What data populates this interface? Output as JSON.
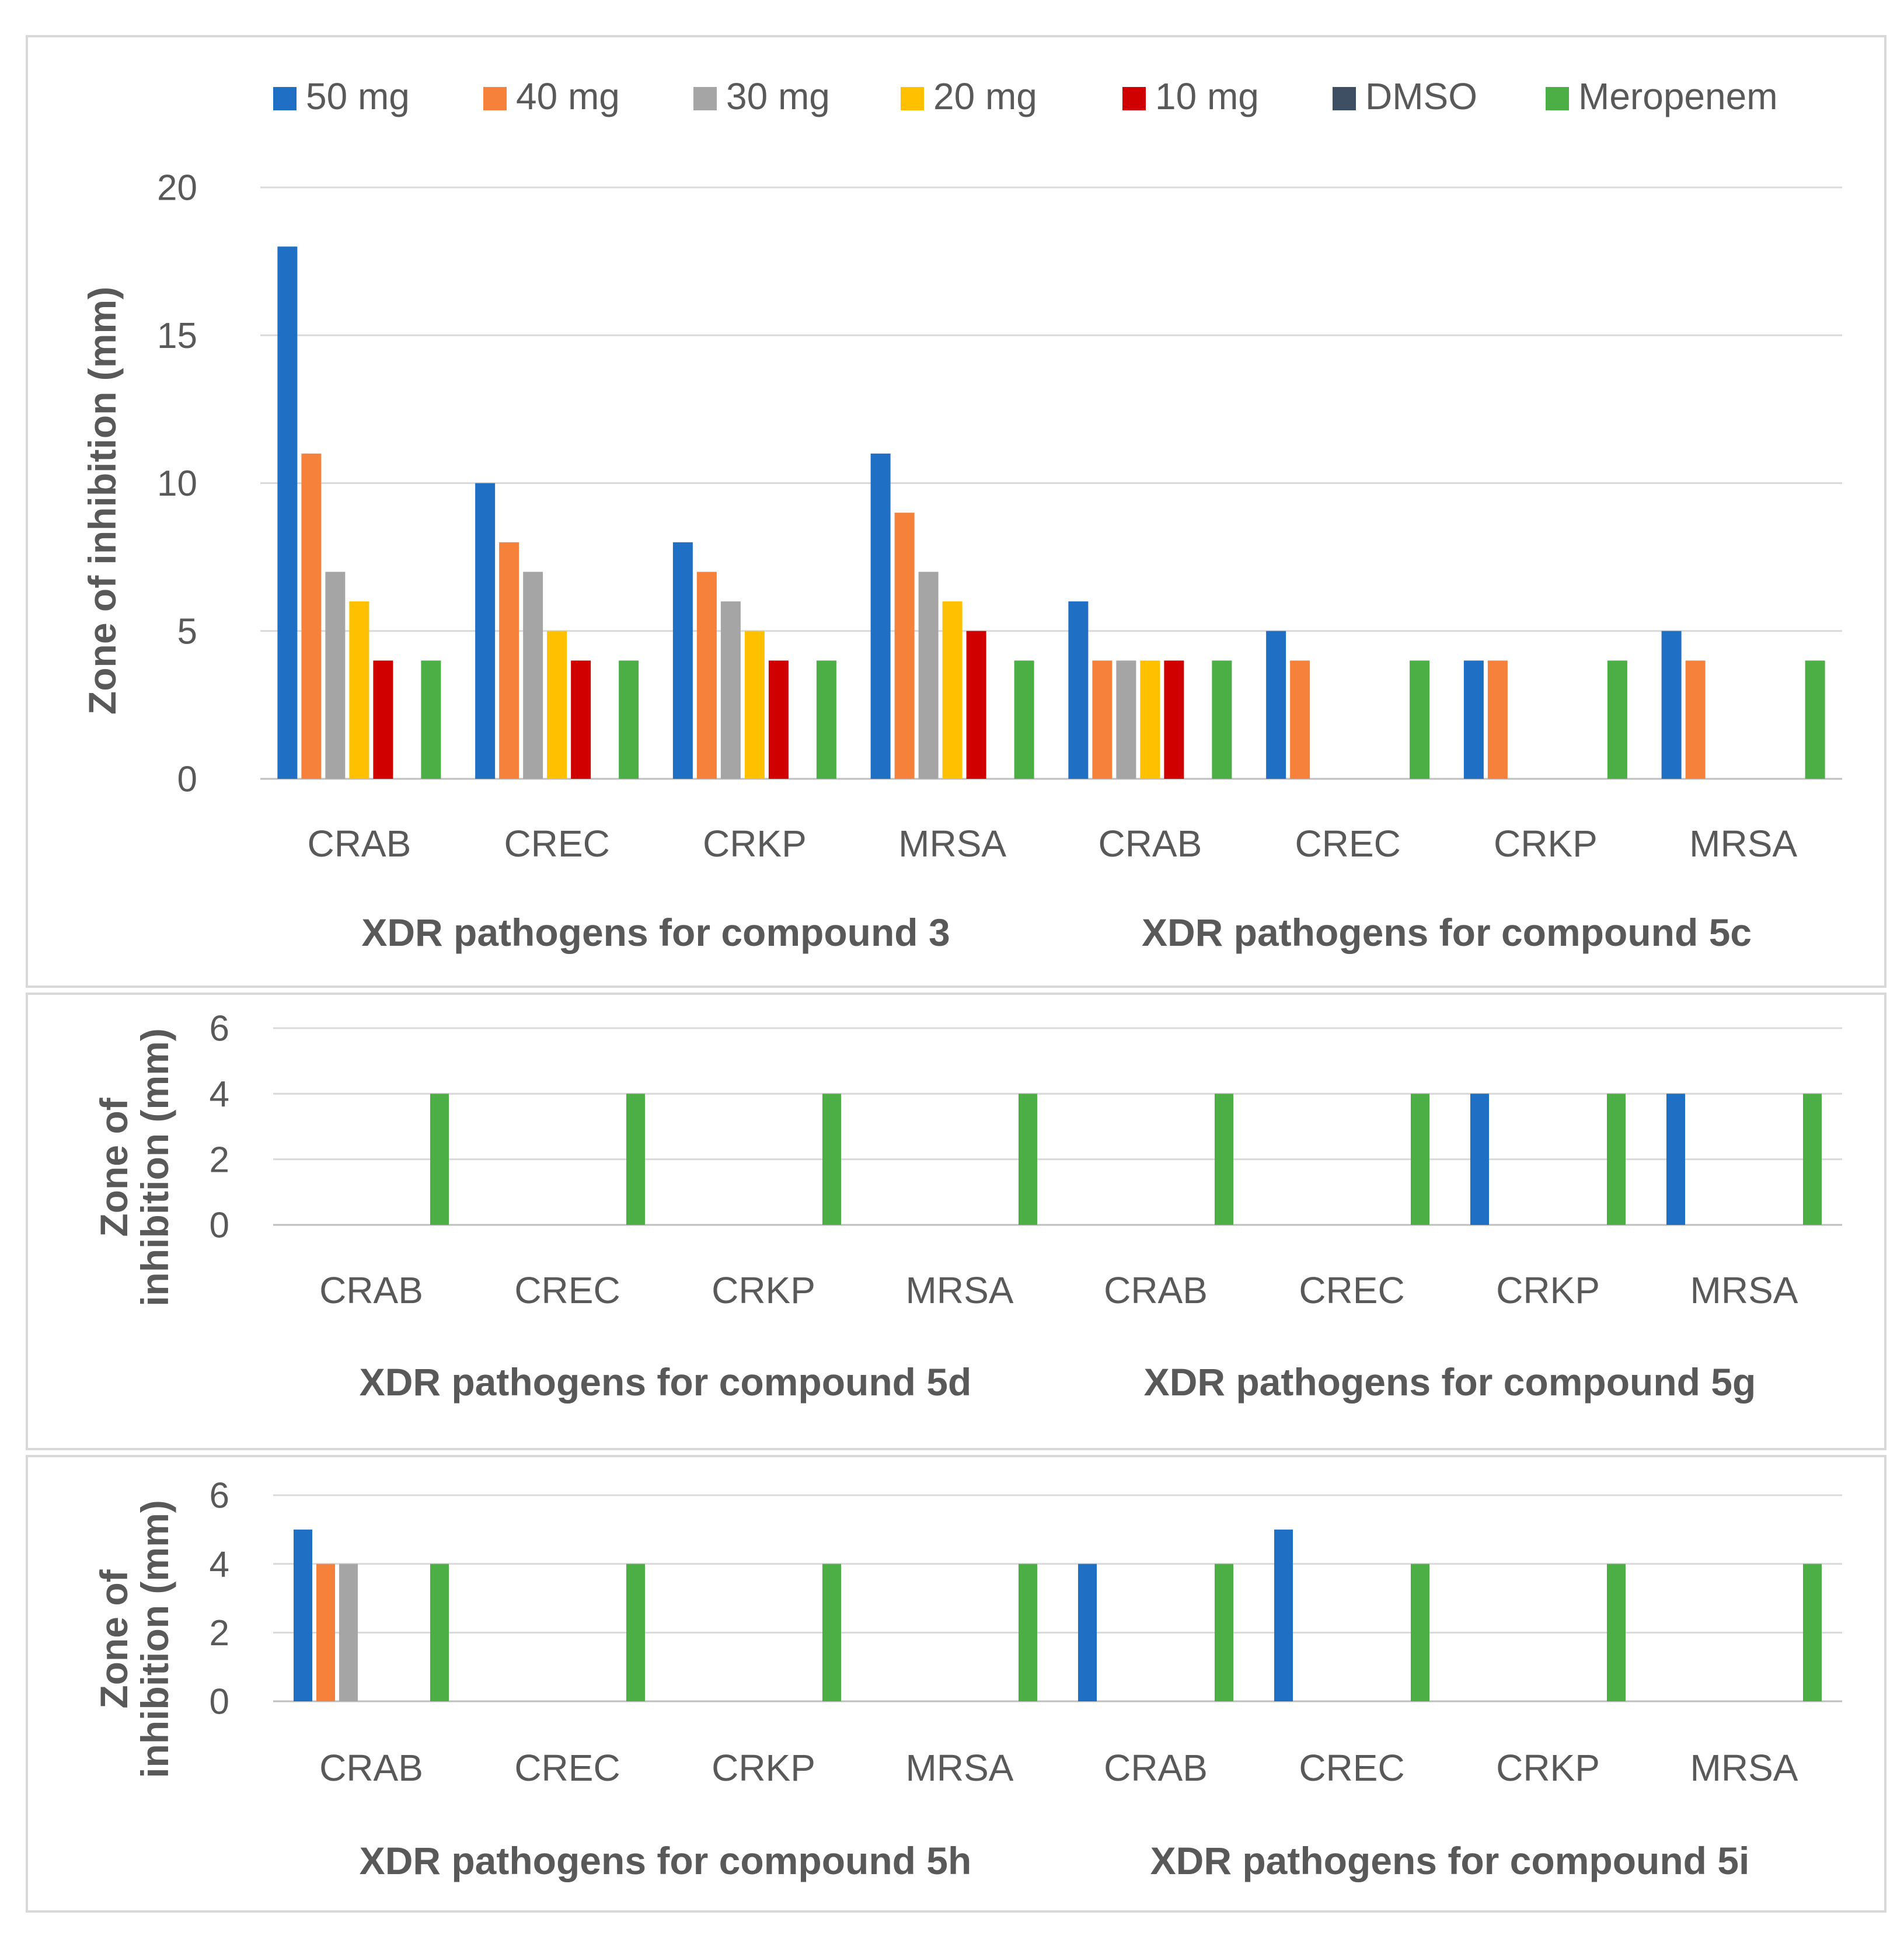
{
  "colors": {
    "50 mg": "#1f6fc5",
    "40 mg": "#f5813a",
    "30 mg": "#a5a5a5",
    "20  mg": "#ffc000",
    "10 mg": "#d00000",
    "DMSO": "#3e4f64",
    "Meropenem": "#4caf45",
    "grid": "#d9d9d9",
    "text": "#595959"
  },
  "legend": [
    "50 mg",
    "40 mg",
    "30 mg",
    "20  mg",
    "10 mg",
    "DMSO",
    "Meropenem"
  ],
  "chart_data": [
    {
      "type": "bar",
      "ylabel": "Zone of inhibition (mm)",
      "ylim": [
        0,
        20
      ],
      "yticks": [
        0,
        5,
        10,
        15,
        20
      ],
      "grid": true,
      "legend_position": "top",
      "groups": [
        {
          "label": "XDR pathogens for compound 3",
          "categories": [
            "CRAB",
            "CREC",
            "CRKP",
            "MRSA"
          ]
        },
        {
          "label": "XDR pathogens for compound 5c",
          "categories": [
            "CRAB",
            "CREC",
            "CRKP",
            "MRSA"
          ]
        }
      ],
      "series": [
        {
          "name": "50 mg",
          "values": [
            18,
            10,
            8,
            11,
            6,
            5,
            4,
            5
          ]
        },
        {
          "name": "40 mg",
          "values": [
            11,
            8,
            7,
            9,
            4,
            4,
            4,
            4
          ]
        },
        {
          "name": "30 mg",
          "values": [
            7,
            7,
            6,
            7,
            4,
            0,
            0,
            0
          ]
        },
        {
          "name": "20  mg",
          "values": [
            6,
            5,
            5,
            6,
            4,
            0,
            0,
            0
          ]
        },
        {
          "name": "10 mg",
          "values": [
            4,
            4,
            4,
            5,
            4,
            0,
            0,
            0
          ]
        },
        {
          "name": "DMSO",
          "values": [
            0,
            0,
            0,
            0,
            0,
            0,
            0,
            0
          ]
        },
        {
          "name": "Meropenem",
          "values": [
            4,
            4,
            4,
            4,
            4,
            4,
            4,
            4
          ]
        }
      ]
    },
    {
      "type": "bar",
      "ylabel_lines": [
        "Zone of",
        "inhibition (mm)"
      ],
      "ylim": [
        0,
        6
      ],
      "yticks": [
        0,
        2,
        4,
        6
      ],
      "grid": true,
      "groups": [
        {
          "label": "XDR pathogens for compound 5d",
          "categories": [
            "CRAB",
            "CREC",
            "CRKP",
            "MRSA"
          ]
        },
        {
          "label": "XDR pathogens for compound 5g",
          "categories": [
            "CRAB",
            "CREC",
            "CRKP",
            "MRSA"
          ]
        }
      ],
      "series": [
        {
          "name": "50 mg",
          "values": [
            0,
            0,
            0,
            0,
            0,
            0,
            4,
            4
          ]
        },
        {
          "name": "40 mg",
          "values": [
            0,
            0,
            0,
            0,
            0,
            0,
            0,
            0
          ]
        },
        {
          "name": "30 mg",
          "values": [
            0,
            0,
            0,
            0,
            0,
            0,
            0,
            0
          ]
        },
        {
          "name": "20  mg",
          "values": [
            0,
            0,
            0,
            0,
            0,
            0,
            0,
            0
          ]
        },
        {
          "name": "10 mg",
          "values": [
            0,
            0,
            0,
            0,
            0,
            0,
            0,
            0
          ]
        },
        {
          "name": "DMSO",
          "values": [
            0,
            0,
            0,
            0,
            0,
            0,
            0,
            0
          ]
        },
        {
          "name": "Meropenem",
          "values": [
            4,
            4,
            4,
            4,
            4,
            4,
            4,
            4
          ]
        }
      ]
    },
    {
      "type": "bar",
      "ylabel_lines": [
        "Zone of",
        "inhibition (mm)"
      ],
      "ylim": [
        0,
        6
      ],
      "yticks": [
        0,
        2,
        4,
        6
      ],
      "grid": true,
      "groups": [
        {
          "label": "XDR pathogens for compound 5h",
          "categories": [
            "CRAB",
            "CREC",
            "CRKP",
            "MRSA"
          ]
        },
        {
          "label": "XDR pathogens for compound 5i",
          "categories": [
            "CRAB",
            "CREC",
            "CRKP",
            "MRSA"
          ]
        }
      ],
      "series": [
        {
          "name": "50 mg",
          "values": [
            5,
            0,
            0,
            0,
            4,
            5,
            0,
            0
          ]
        },
        {
          "name": "40 mg",
          "values": [
            4,
            0,
            0,
            0,
            0,
            0,
            0,
            0
          ]
        },
        {
          "name": "30 mg",
          "values": [
            4,
            0,
            0,
            0,
            0,
            0,
            0,
            0
          ]
        },
        {
          "name": "20  mg",
          "values": [
            0,
            0,
            0,
            0,
            0,
            0,
            0,
            0
          ]
        },
        {
          "name": "10 mg",
          "values": [
            0,
            0,
            0,
            0,
            0,
            0,
            0,
            0
          ]
        },
        {
          "name": "DMSO",
          "values": [
            0,
            0,
            0,
            0,
            0,
            0,
            0,
            0
          ]
        },
        {
          "name": "Meropenem",
          "values": [
            4,
            4,
            4,
            4,
            4,
            4,
            4,
            4
          ]
        }
      ]
    }
  ]
}
